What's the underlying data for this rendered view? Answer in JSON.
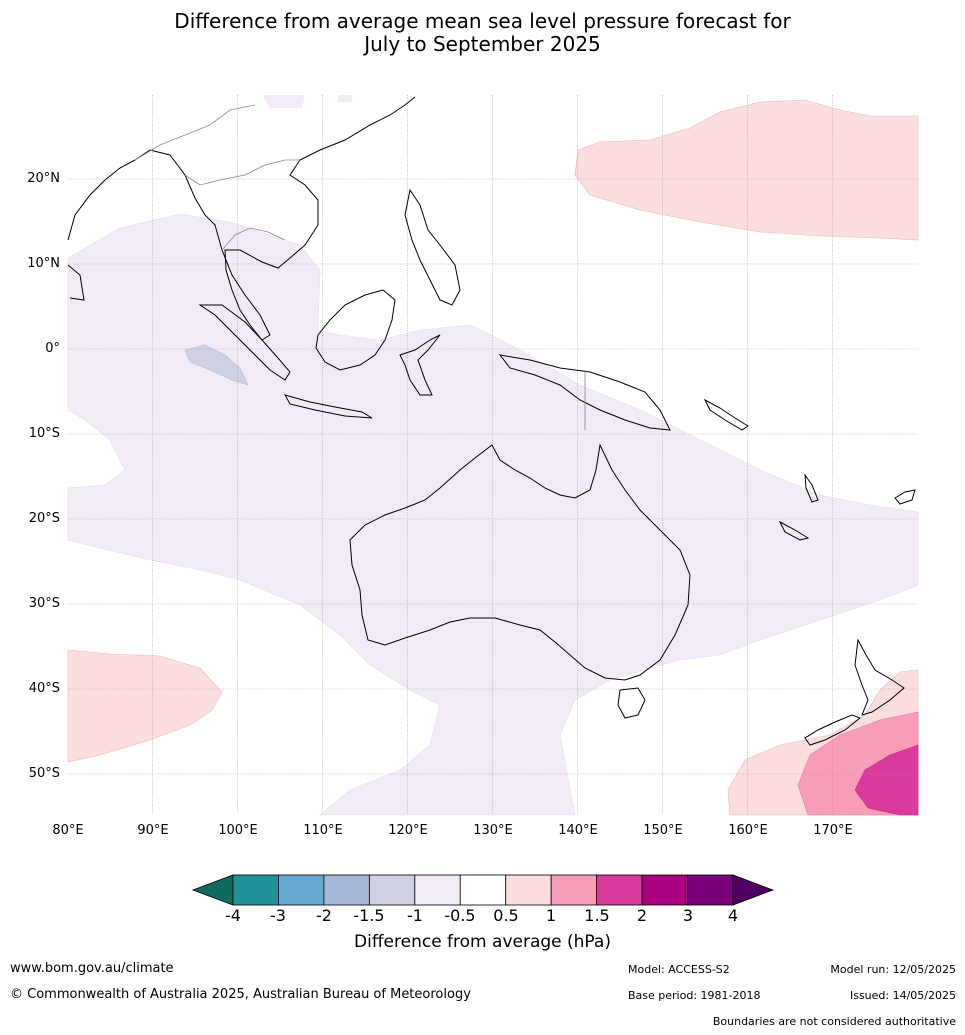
{
  "title": {
    "line1": "Difference from average mean sea level pressure forecast for",
    "line2": "July to September 2025"
  },
  "map": {
    "longitude_labels": [
      "80°E",
      "90°E",
      "100°E",
      "110°E",
      "120°E",
      "130°E",
      "140°E",
      "150°E",
      "160°E",
      "170°E"
    ],
    "latitude_labels": [
      "20°N",
      "10°N",
      "0°",
      "10°S",
      "20°S",
      "30°S",
      "40°S",
      "50°S"
    ],
    "extent": {
      "lon_min": 80,
      "lon_max": 180,
      "lat_min": -55,
      "lat_max": 30
    },
    "ocean_color": "#ffffff",
    "coast_color": "#000000",
    "border_color": "#888888"
  },
  "colorbar": {
    "tick_labels": [
      "-4",
      "-3",
      "-2",
      "-1.5",
      "-1",
      "-0.5",
      "0.5",
      "1",
      "1.5",
      "2",
      "3",
      "4"
    ],
    "colors": [
      "#0f6b5e",
      "#1f9399",
      "#66a9d0",
      "#a4b8d6",
      "#cfd0e4",
      "#f2eaf4",
      "#ffffff",
      "#fddede",
      "#f89db8",
      "#d93a9b",
      "#aa0080",
      "#7a007a",
      "#4d0062"
    ],
    "label": "Difference from average (hPa)"
  },
  "footer": {
    "url": "www.bom.gov.au/climate",
    "copyright": "© Commonwealth of Australia 2025, Australian Bureau of Meteorology",
    "model": "Model: ACCESS-S2",
    "base_period": "Base period: 1981-2018",
    "model_run": "Model run: 12/05/2025",
    "issued": "Issued: 14/05/2025",
    "disclaimer": "Boundaries are not considered authoritative"
  }
}
